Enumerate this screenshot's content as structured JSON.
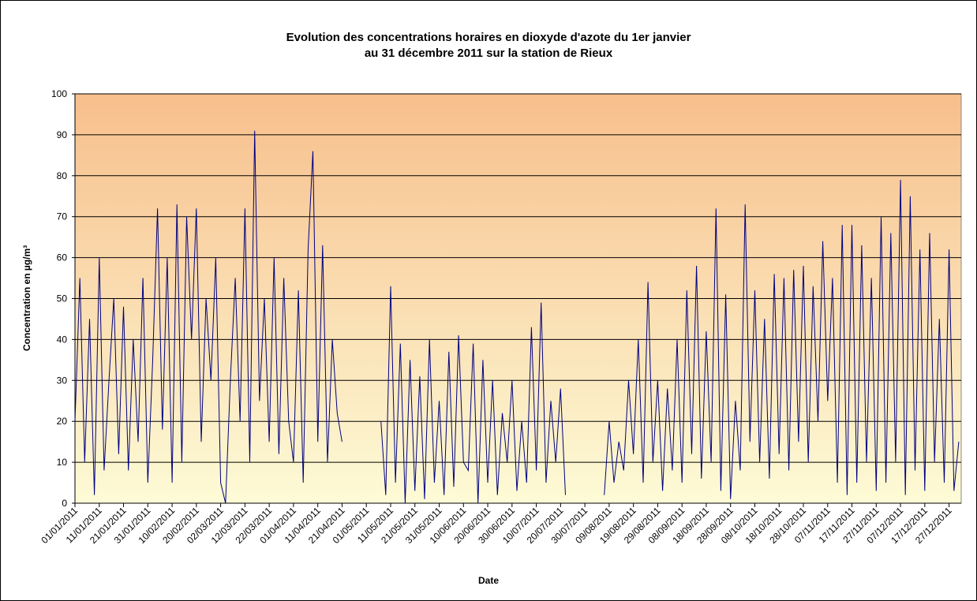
{
  "chart_data": {
    "type": "line",
    "title": [
      "Evolution des concentrations horaires en dioxyde d'azote du 1er janvier",
      "au 31 décembre 2011 sur la station de Rieux"
    ],
    "x_label": "Date",
    "y_label": "Concentration en µg/m³",
    "xlim": [
      0,
      365
    ],
    "ylim": [
      0,
      100
    ],
    "yticks": [
      0,
      10,
      20,
      30,
      40,
      50,
      60,
      70,
      80,
      90,
      100
    ],
    "xticks": [
      {
        "value": 0,
        "label": "01/01/2011"
      },
      {
        "value": 10,
        "label": "11/01/2011"
      },
      {
        "value": 20,
        "label": "21/01/2011"
      },
      {
        "value": 30,
        "label": "31/01/2011"
      },
      {
        "value": 40,
        "label": "10/02/2011"
      },
      {
        "value": 50,
        "label": "20/02/2011"
      },
      {
        "value": 60,
        "label": "02/03/2011"
      },
      {
        "value": 70,
        "label": "12/03/2011"
      },
      {
        "value": 80,
        "label": "22/03/2011"
      },
      {
        "value": 90,
        "label": "01/04/2011"
      },
      {
        "value": 100,
        "label": "11/04/2011"
      },
      {
        "value": 110,
        "label": "21/04/2011"
      },
      {
        "value": 120,
        "label": "01/05/2011"
      },
      {
        "value": 130,
        "label": "11/05/2011"
      },
      {
        "value": 140,
        "label": "21/05/2011"
      },
      {
        "value": 150,
        "label": "31/05/2011"
      },
      {
        "value": 160,
        "label": "10/06/2011"
      },
      {
        "value": 170,
        "label": "20/06/2011"
      },
      {
        "value": 180,
        "label": "30/06/2011"
      },
      {
        "value": 190,
        "label": "10/07/2011"
      },
      {
        "value": 200,
        "label": "20/07/2011"
      },
      {
        "value": 210,
        "label": "30/07/2011"
      },
      {
        "value": 220,
        "label": "09/08/2011"
      },
      {
        "value": 230,
        "label": "19/08/2011"
      },
      {
        "value": 240,
        "label": "29/08/2011"
      },
      {
        "value": 250,
        "label": "08/09/2011"
      },
      {
        "value": 260,
        "label": "18/09/2011"
      },
      {
        "value": 270,
        "label": "28/09/2011"
      },
      {
        "value": 280,
        "label": "08/10/2011"
      },
      {
        "value": 290,
        "label": "18/10/2011"
      },
      {
        "value": 300,
        "label": "28/10/2011"
      },
      {
        "value": 310,
        "label": "07/11/2011"
      },
      {
        "value": 320,
        "label": "17/11/2011"
      },
      {
        "value": 330,
        "label": "27/11/2011"
      },
      {
        "value": 340,
        "label": "07/12/2011"
      },
      {
        "value": 350,
        "label": "17/12/2011"
      },
      {
        "value": 360,
        "label": "27/12/2011"
      }
    ],
    "grid": true,
    "x": [
      0,
      2,
      4,
      6,
      8,
      10,
      12,
      14,
      16,
      18,
      20,
      22,
      24,
      26,
      28,
      30,
      32,
      34,
      36,
      38,
      40,
      42,
      44,
      46,
      48,
      50,
      52,
      54,
      56,
      58,
      60,
      62,
      64,
      66,
      68,
      70,
      72,
      74,
      76,
      78,
      80,
      82,
      84,
      86,
      88,
      90,
      92,
      94,
      96,
      98,
      100,
      102,
      104,
      106,
      108,
      110,
      112,
      114,
      116,
      118,
      120,
      122,
      124,
      126,
      128,
      130,
      132,
      134,
      136,
      138,
      140,
      142,
      144,
      146,
      148,
      150,
      152,
      154,
      156,
      158,
      160,
      162,
      164,
      166,
      168,
      170,
      172,
      174,
      176,
      178,
      180,
      182,
      184,
      186,
      188,
      190,
      192,
      194,
      196,
      198,
      200,
      202,
      204,
      206,
      208,
      210,
      212,
      214,
      216,
      218,
      220,
      222,
      224,
      226,
      228,
      230,
      232,
      234,
      236,
      238,
      240,
      242,
      244,
      246,
      248,
      250,
      252,
      254,
      256,
      258,
      260,
      262,
      264,
      266,
      268,
      270,
      272,
      274,
      276,
      278,
      280,
      282,
      284,
      286,
      288,
      290,
      292,
      294,
      296,
      298,
      300,
      302,
      304,
      306,
      308,
      310,
      312,
      314,
      316,
      318,
      320,
      322,
      324,
      326,
      328,
      330,
      332,
      334,
      336,
      338,
      340,
      342,
      344,
      346,
      348,
      350,
      352,
      354,
      356,
      358,
      360,
      362,
      364
    ],
    "series": [
      {
        "color": "#000080",
        "values": [
          20,
          55,
          10,
          45,
          2,
          60,
          8,
          30,
          50,
          12,
          48,
          8,
          40,
          15,
          55,
          5,
          35,
          72,
          18,
          60,
          5,
          73,
          10,
          70,
          40,
          72,
          15,
          50,
          30,
          60,
          5,
          0,
          30,
          55,
          20,
          72,
          10,
          91,
          25,
          50,
          15,
          60,
          12,
          55,
          20,
          10,
          52,
          5,
          62,
          86,
          15,
          63,
          10,
          40,
          22,
          15,
          null,
          null,
          null,
          null,
          null,
          null,
          null,
          20,
          2,
          53,
          5,
          39,
          0,
          35,
          3,
          31,
          1,
          40,
          5,
          25,
          2,
          37,
          4,
          41,
          10,
          8,
          39,
          0,
          35,
          5,
          30,
          2,
          22,
          10,
          30,
          3,
          20,
          5,
          43,
          8,
          49,
          5,
          25,
          10,
          28,
          2,
          null,
          null,
          null,
          null,
          null,
          null,
          null,
          2,
          20,
          5,
          15,
          8,
          30,
          12,
          40,
          5,
          54,
          10,
          30,
          3,
          28,
          8,
          40,
          5,
          52,
          12,
          58,
          6,
          42,
          10,
          72,
          3,
          51,
          1,
          25,
          8,
          73,
          15,
          52,
          10,
          45,
          6,
          56,
          12,
          55,
          8,
          57,
          15,
          58,
          10,
          53,
          20,
          64,
          25,
          55,
          5,
          68,
          2,
          68,
          5,
          63,
          10,
          55,
          3,
          70,
          5,
          66,
          10,
          79,
          2,
          75,
          8,
          62,
          3,
          66,
          10,
          45,
          5,
          62,
          3,
          15
        ]
      }
    ]
  }
}
